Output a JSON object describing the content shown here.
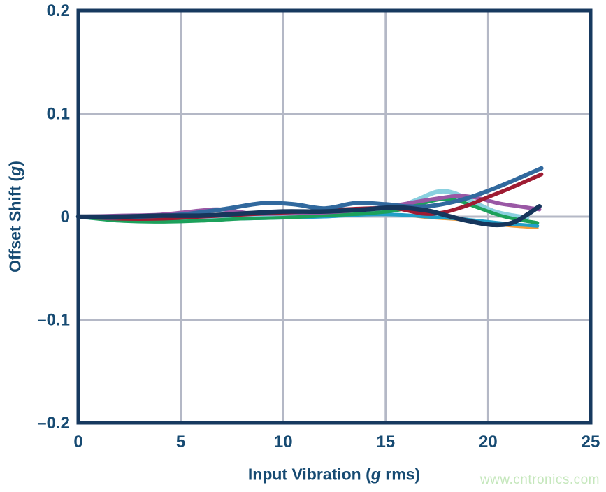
{
  "colors": {
    "axis_frame": "#17395f",
    "tick_text": "#164a72",
    "grid": "#b4b8c6",
    "background": "#ffffff",
    "watermark": "#c5e7bc"
  },
  "watermark": {
    "text": "www.cntronics.com"
  },
  "chart_data": {
    "type": "line",
    "title": "",
    "xlabel": "Input Vibration (g rms)",
    "ylabel": "Offset Shift (g)",
    "xlabel_parts": [
      "Input Vibration (",
      "g",
      " rms)"
    ],
    "ylabel_parts": [
      "Offset Shift (",
      "g",
      ")"
    ],
    "xlim": [
      0,
      25
    ],
    "ylim": [
      -0.2,
      0.2
    ],
    "grid": true,
    "legend": "none",
    "x_ticks": [
      0,
      5,
      10,
      15,
      20,
      25
    ],
    "x_tick_labels": [
      "0",
      "5",
      "10",
      "15",
      "20",
      "25"
    ],
    "y_ticks": [
      0.2,
      0.1,
      0,
      -0.1,
      -0.2
    ],
    "y_tick_labels": [
      "0.2",
      "0.1",
      "0",
      "–0.1",
      "–0.2"
    ],
    "grid_x_values": [
      5,
      10,
      15,
      20
    ],
    "grid_y_values": [
      0.1,
      0,
      -0.1
    ],
    "series": [
      {
        "name": "unit-orange",
        "color": "#f29b38",
        "width": 3.5,
        "points": [
          [
            0,
            0
          ],
          [
            2,
            -0.004
          ],
          [
            4,
            -0.004
          ],
          [
            6,
            -0.003
          ],
          [
            8,
            -0.001
          ],
          [
            10,
            0.0
          ],
          [
            12,
            0.001
          ],
          [
            14,
            0.002
          ],
          [
            15.5,
            0.002
          ],
          [
            17,
            -0.001
          ],
          [
            18.5,
            -0.003
          ],
          [
            20,
            -0.006
          ],
          [
            21,
            -0.009
          ],
          [
            22.4,
            -0.011
          ]
        ]
      },
      {
        "name": "unit-cyan",
        "color": "#219fc7",
        "width": 5,
        "points": [
          [
            0,
            0
          ],
          [
            2,
            -0.003
          ],
          [
            4,
            -0.004
          ],
          [
            6,
            -0.003
          ],
          [
            8,
            -0.002
          ],
          [
            10,
            -0.001
          ],
          [
            12,
            0.0
          ],
          [
            14,
            0.002
          ],
          [
            15.5,
            0.002
          ],
          [
            17,
            0.0
          ],
          [
            18.5,
            -0.002
          ],
          [
            20,
            -0.005
          ],
          [
            21,
            -0.007
          ],
          [
            22.4,
            -0.009
          ]
        ]
      },
      {
        "name": "unit-light-cyan",
        "color": "#8ad0df",
        "width": 6.5,
        "points": [
          [
            0,
            0
          ],
          [
            2,
            -0.003
          ],
          [
            4,
            -0.004
          ],
          [
            6,
            -0.002
          ],
          [
            8,
            -0.001
          ],
          [
            10,
            0.001
          ],
          [
            12,
            0.002
          ],
          [
            14,
            0.005
          ],
          [
            15.5,
            0.009
          ],
          [
            16.5,
            0.016
          ],
          [
            17.5,
            0.024
          ],
          [
            18.3,
            0.023
          ],
          [
            19.3,
            0.014
          ],
          [
            20.3,
            0.005
          ],
          [
            21.2,
            0.001
          ],
          [
            21.9,
            -0.001
          ]
        ]
      },
      {
        "name": "unit-green",
        "color": "#1ca15b",
        "width": 5,
        "points": [
          [
            0,
            0
          ],
          [
            2,
            -0.004
          ],
          [
            4,
            -0.005
          ],
          [
            6,
            -0.004
          ],
          [
            8,
            -0.002
          ],
          [
            10,
            -0.001
          ],
          [
            12,
            0.001
          ],
          [
            14,
            0.003
          ],
          [
            15.5,
            0.006
          ],
          [
            16.8,
            0.013
          ],
          [
            17.8,
            0.017
          ],
          [
            18.6,
            0.015
          ],
          [
            19.6,
            0.008
          ],
          [
            20.6,
            0.001
          ],
          [
            21.5,
            -0.003
          ],
          [
            22.4,
            -0.006
          ]
        ]
      },
      {
        "name": "unit-purple",
        "color": "#9a58a5",
        "width": 5.5,
        "points": [
          [
            0,
            0
          ],
          [
            2,
            0.001
          ],
          [
            4,
            0.002
          ],
          [
            6,
            0.006
          ],
          [
            7,
            0.007
          ],
          [
            8.5,
            0.003
          ],
          [
            10,
            0.003
          ],
          [
            12,
            0.004
          ],
          [
            14,
            0.007
          ],
          [
            15.5,
            0.011
          ],
          [
            17,
            0.016
          ],
          [
            18.5,
            0.02
          ],
          [
            19.5,
            0.018
          ],
          [
            20.5,
            0.013
          ],
          [
            21.5,
            0.01
          ],
          [
            22.5,
            0.007
          ]
        ]
      },
      {
        "name": "unit-crimson",
        "color": "#9e1b32",
        "width": 5.5,
        "points": [
          [
            0,
            0
          ],
          [
            2,
            -0.002
          ],
          [
            4,
            -0.002
          ],
          [
            6,
            0.0
          ],
          [
            8,
            0.002
          ],
          [
            10,
            0.004
          ],
          [
            12,
            0.006
          ],
          [
            14,
            0.008
          ],
          [
            15.5,
            0.008
          ],
          [
            16.8,
            0.003
          ],
          [
            17.8,
            0.004
          ],
          [
            19,
            0.011
          ],
          [
            20,
            0.019
          ],
          [
            21,
            0.027
          ],
          [
            22.6,
            0.041
          ]
        ]
      },
      {
        "name": "unit-steel-blue",
        "color": "#31699e",
        "width": 6,
        "points": [
          [
            0,
            0
          ],
          [
            1.5,
            -0.001
          ],
          [
            3,
            0.0
          ],
          [
            5,
            0.002
          ],
          [
            7,
            0.007
          ],
          [
            9,
            0.013
          ],
          [
            10.5,
            0.012
          ],
          [
            12,
            0.008
          ],
          [
            13.5,
            0.013
          ],
          [
            15,
            0.012
          ],
          [
            16,
            0.01
          ],
          [
            17,
            0.01
          ],
          [
            18,
            0.013
          ],
          [
            19,
            0.018
          ],
          [
            20,
            0.025
          ],
          [
            21,
            0.033
          ],
          [
            22.6,
            0.047
          ]
        ]
      },
      {
        "name": "unit-dark-navy",
        "color": "#16365c",
        "width": 6.5,
        "points": [
          [
            0,
            0
          ],
          [
            2,
            0.0
          ],
          [
            4,
            0.001
          ],
          [
            6,
            0.001
          ],
          [
            8,
            0.003
          ],
          [
            10,
            0.005
          ],
          [
            12,
            0.005
          ],
          [
            14,
            0.007
          ],
          [
            15.5,
            0.009
          ],
          [
            17,
            0.006
          ],
          [
            18,
            0.001
          ],
          [
            19,
            -0.004
          ],
          [
            20.3,
            -0.008
          ],
          [
            21.3,
            -0.005
          ],
          [
            22.5,
            0.01
          ]
        ]
      }
    ]
  }
}
